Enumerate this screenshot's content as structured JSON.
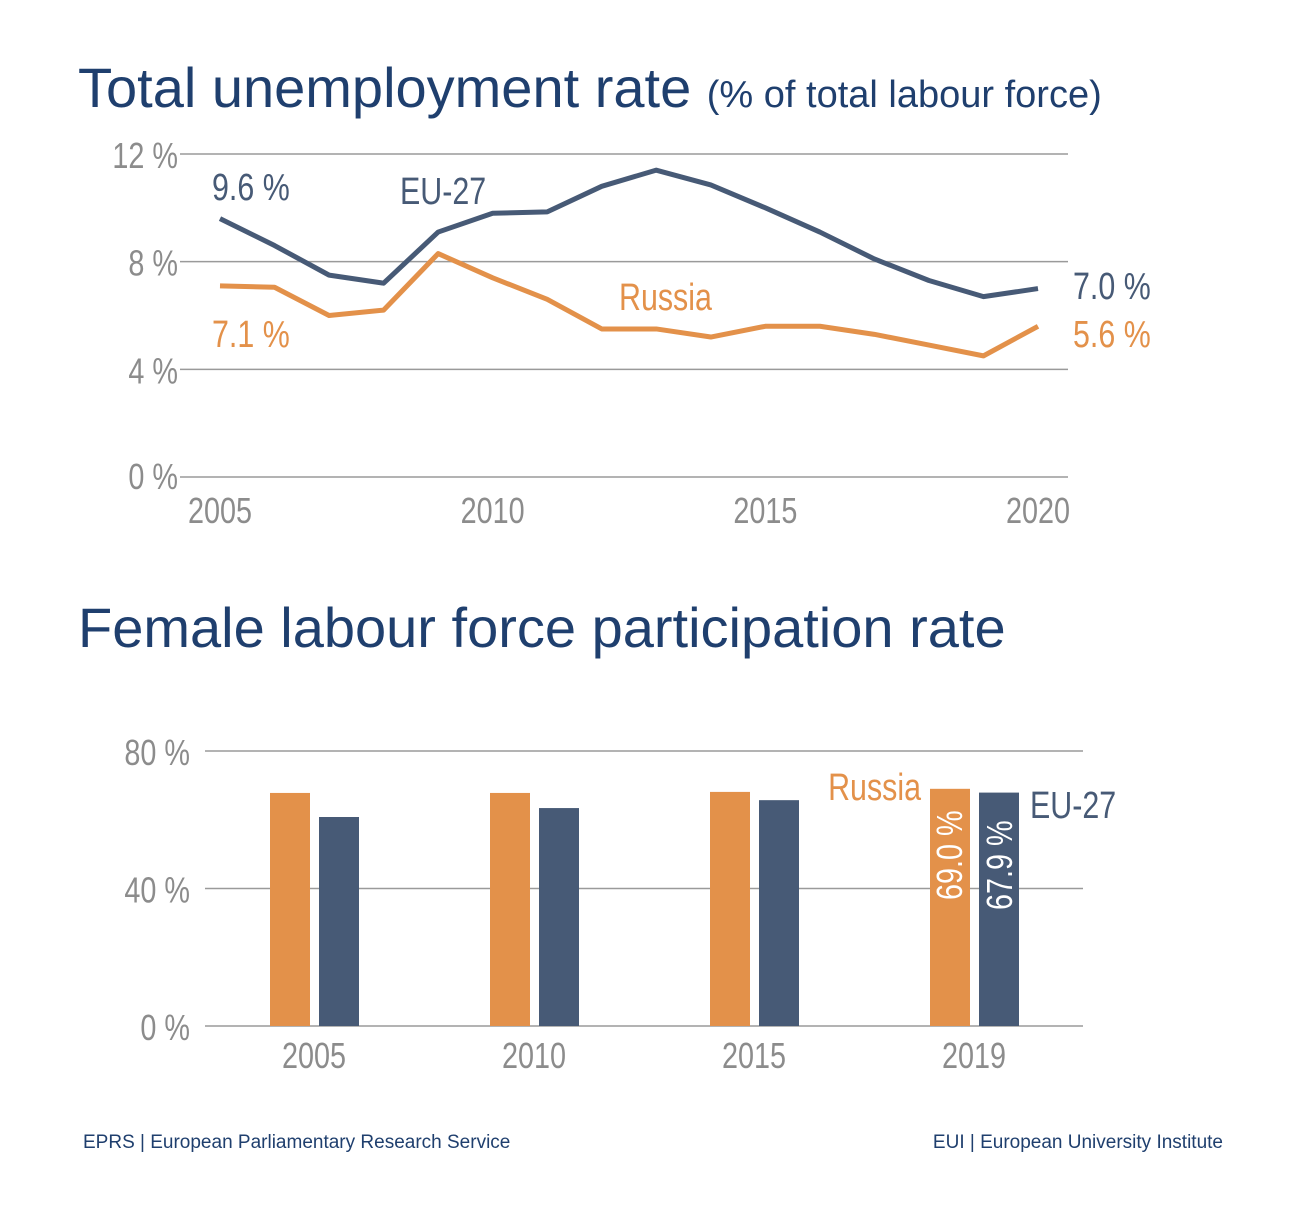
{
  "charts_text": {
    "title1": "Total unemployment rate",
    "title1_sub": "(% of total labour force)",
    "title2": "Female labour force participation rate",
    "footer_left": "EPRS | European Parliamentary Research Service",
    "footer_right": "EUI | European University Institute"
  },
  "colors": {
    "russia": "#E3914A",
    "eu27": "#475A76",
    "grid": "#9a9a9a",
    "tick": "#8c8c8c",
    "title": "#1F3F6E"
  },
  "chart_data": [
    {
      "type": "line",
      "title": "Total unemployment rate (% of total labour force)",
      "x": [
        2005,
        2006,
        2007,
        2008,
        2009,
        2010,
        2011,
        2012,
        2013,
        2014,
        2015,
        2016,
        2017,
        2018,
        2019,
        2020
      ],
      "xticks": [
        "2005",
        "2010",
        "2015",
        "2020"
      ],
      "yticks": [
        "0 %",
        "4 %",
        "8 %",
        "12 %"
      ],
      "ylim": [
        0,
        12
      ],
      "grid": true,
      "series": [
        {
          "name": "EU-27",
          "color": "#475A76",
          "values": [
            9.6,
            8.6,
            7.5,
            7.2,
            9.1,
            9.8,
            9.85,
            10.8,
            11.4,
            10.85,
            10.0,
            9.1,
            8.1,
            7.3,
            6.7,
            7.0
          ],
          "start_label": "9.6 %",
          "end_label": "7.0 %"
        },
        {
          "name": "Russia",
          "color": "#E3914A",
          "values": [
            7.1,
            7.05,
            6.0,
            6.2,
            8.3,
            7.4,
            6.6,
            5.5,
            5.5,
            5.2,
            5.6,
            5.6,
            5.3,
            4.9,
            4.5,
            5.6
          ],
          "start_label": "7.1 %",
          "end_label": "5.6 %"
        }
      ]
    },
    {
      "type": "bar",
      "title": "Female labour force participation rate",
      "categories": [
        "2005",
        "2010",
        "2015",
        "2019"
      ],
      "yticks": [
        "0 %",
        "40 %",
        "80 %"
      ],
      "ylim": [
        0,
        80
      ],
      "grid": true,
      "series": [
        {
          "name": "Russia",
          "color": "#E3914A",
          "values": [
            67.8,
            67.8,
            68.1,
            69.0
          ]
        },
        {
          "name": "EU-27",
          "color": "#475A76",
          "values": [
            60.8,
            63.4,
            65.7,
            67.9
          ]
        }
      ],
      "data_labels": [
        "69.0 %",
        "67.9 %"
      ]
    }
  ]
}
